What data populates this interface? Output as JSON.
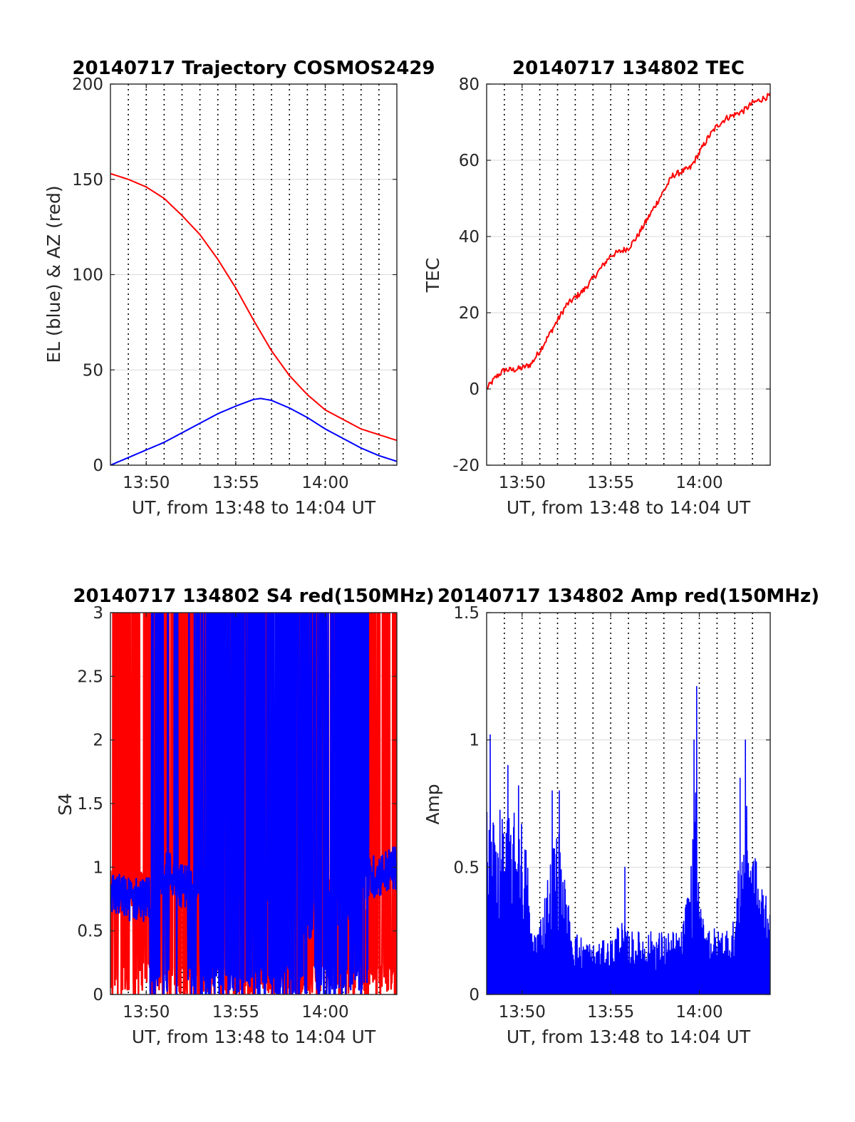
{
  "figure": {
    "background": "#ffffff",
    "colors": {
      "red": "#ff0000",
      "blue": "#0000ff",
      "grid": "#d9d9d9",
      "vline": "#000000",
      "axis": "#262626"
    }
  },
  "chart_data": [
    {
      "id": "trajectory",
      "type": "line",
      "title": "20140717 Trajectory COSMOS2429",
      "xlabel": "UT, from 13:48 to 14:04 UT",
      "ylabel": "EL (blue) & AZ (red)",
      "xlim_minutes": [
        828,
        844
      ],
      "ylim": [
        0,
        200
      ],
      "yticks": [
        0,
        50,
        100,
        150,
        200
      ],
      "ytick_labels": [
        "0",
        "50",
        "100",
        "150",
        "200"
      ],
      "xticks": [
        830,
        835,
        840
      ],
      "xtick_labels": [
        "13:50",
        "13:55",
        "14:00"
      ],
      "grid": "horizontal",
      "dotted_vlines": [
        829,
        830,
        831,
        832,
        833,
        834,
        835,
        836,
        837,
        838,
        839,
        840,
        841,
        842,
        843
      ],
      "series": [
        {
          "color": "#ff0000",
          "kind": "smooth",
          "points": [
            [
              828,
              153
            ],
            [
              829,
              150
            ],
            [
              830,
              146
            ],
            [
              831,
              140
            ],
            [
              832,
              131
            ],
            [
              833,
              121
            ],
            [
              834,
              108
            ],
            [
              835,
              93
            ],
            [
              836,
              76
            ],
            [
              837,
              60
            ],
            [
              838,
              47
            ],
            [
              839,
              37
            ],
            [
              840,
              29
            ],
            [
              841,
              24
            ],
            [
              842,
              19
            ],
            [
              843,
              16
            ],
            [
              844,
              13
            ]
          ]
        },
        {
          "color": "#0000ff",
          "kind": "smooth",
          "points": [
            [
              828,
              0
            ],
            [
              829,
              4
            ],
            [
              830,
              8
            ],
            [
              831,
              12
            ],
            [
              832,
              17
            ],
            [
              833,
              22
            ],
            [
              834,
              27
            ],
            [
              835,
              31
            ],
            [
              836,
              34.5
            ],
            [
              836.4,
              35
            ],
            [
              837,
              34
            ],
            [
              838,
              30
            ],
            [
              839,
              25
            ],
            [
              840,
              19
            ],
            [
              841,
              14
            ],
            [
              842,
              9
            ],
            [
              843,
              5
            ],
            [
              844,
              2
            ]
          ]
        }
      ]
    },
    {
      "id": "tec",
      "type": "line",
      "title": "20140717 134802 TEC",
      "xlabel": "UT, from 13:48 to 14:04 UT",
      "ylabel": "TEC",
      "xlim_minutes": [
        828,
        844
      ],
      "ylim": [
        -20,
        80
      ],
      "yticks": [
        -20,
        0,
        20,
        40,
        60,
        80
      ],
      "ytick_labels": [
        "-20",
        "0",
        "20",
        "40",
        "60",
        "80"
      ],
      "xticks": [
        830,
        835,
        840
      ],
      "xtick_labels": [
        "13:50",
        "13:55",
        "14:00"
      ],
      "grid": "horizontal",
      "dotted_vlines": [
        829,
        830,
        831,
        832,
        833,
        834,
        835,
        836,
        837,
        838,
        839,
        840,
        841,
        842,
        843
      ],
      "series": [
        {
          "color": "#ff0000",
          "kind": "noisy",
          "noise": 0.8,
          "samples": 320,
          "points": [
            [
              828,
              0
            ],
            [
              828.5,
              3
            ],
            [
              829,
              5
            ],
            [
              829.5,
              5
            ],
            [
              830,
              5.5
            ],
            [
              830.5,
              6.5
            ],
            [
              831,
              10
            ],
            [
              831.5,
              14
            ],
            [
              832,
              18
            ],
            [
              832.5,
              22
            ],
            [
              833,
              24
            ],
            [
              833.5,
              26
            ],
            [
              834,
              29
            ],
            [
              834.5,
              32
            ],
            [
              835,
              35
            ],
            [
              835.5,
              36
            ],
            [
              836,
              37
            ],
            [
              836.5,
              40
            ],
            [
              837,
              44
            ],
            [
              837.5,
              48
            ],
            [
              838,
              52
            ],
            [
              838.5,
              56
            ],
            [
              839,
              57
            ],
            [
              839.5,
              58
            ],
            [
              840,
              62
            ],
            [
              840.5,
              66
            ],
            [
              841,
              69
            ],
            [
              841.5,
              71
            ],
            [
              842,
              72
            ],
            [
              842.5,
              73
            ],
            [
              843,
              75
            ],
            [
              843.5,
              76
            ],
            [
              844,
              77
            ]
          ]
        }
      ]
    },
    {
      "id": "s4",
      "type": "line",
      "title": "20140717 134802 S4 red(150MHz)",
      "xlabel": "UT, from 13:48 to 14:04 UT",
      "ylabel": "S4",
      "xlim_minutes": [
        828,
        844
      ],
      "ylim": [
        0,
        3
      ],
      "yticks": [
        0,
        0.5,
        1,
        1.5,
        2,
        2.5,
        3
      ],
      "ytick_labels": [
        "0",
        "0.5",
        "1",
        "1.5",
        "2",
        "2.5",
        "3"
      ],
      "xticks": [
        830,
        835,
        840
      ],
      "xtick_labels": [
        "13:50",
        "13:55",
        "14:00"
      ],
      "grid": "horizontal",
      "dotted_vlines": [
        829,
        830,
        831,
        832,
        833,
        834,
        835,
        836,
        837,
        838,
        839,
        840,
        841,
        842,
        843
      ],
      "series": [
        {
          "color": "#ff0000",
          "kind": "saturated",
          "samples": 900,
          "low_points": [
            [
              828,
              0.8
            ],
            [
              831,
              0.9
            ],
            [
              834,
              0.9
            ],
            [
              838,
              0.9
            ],
            [
              842,
              0.8
            ],
            [
              844,
              0.8
            ]
          ],
          "segments": [
            [
              828,
              830,
              0.6
            ],
            [
              830,
              833,
              0.85
            ],
            [
              833,
              838,
              0.8
            ],
            [
              838,
              842,
              0.85
            ],
            [
              842,
              844,
              0.95
            ]
          ]
        },
        {
          "color": "#0000ff",
          "kind": "saturated",
          "samples": 900,
          "low_points": [
            [
              828,
              0.8
            ],
            [
              829,
              0.75
            ],
            [
              830,
              0.75
            ],
            [
              831,
              1.0
            ],
            [
              832,
              0.85
            ],
            [
              833,
              0.9
            ],
            [
              836,
              0.9
            ],
            [
              839,
              0.6
            ],
            [
              841,
              0.7
            ],
            [
              842.3,
              0.9
            ],
            [
              844,
              1.0
            ]
          ],
          "segments": [
            [
              828,
              830.2,
              0.0
            ],
            [
              830.2,
              831.0,
              0.9
            ],
            [
              831.0,
              833.0,
              0.2
            ],
            [
              833.0,
              839.0,
              0.9
            ],
            [
              839.0,
              839.3,
              0.05
            ],
            [
              839.3,
              842.4,
              0.8
            ],
            [
              842.4,
              844,
              0.0
            ]
          ]
        }
      ]
    },
    {
      "id": "amp",
      "type": "line",
      "title": "20140717 134802 Amp red(150MHz)",
      "xlabel": "UT, from 13:48 to 14:04 UT",
      "ylabel": "Amp",
      "xlim_minutes": [
        828,
        844
      ],
      "ylim": [
        0,
        1.5
      ],
      "yticks": [
        0,
        0.5,
        1,
        1.5
      ],
      "ytick_labels": [
        "0",
        "0.5",
        "1",
        "1.5"
      ],
      "xticks": [
        830,
        835,
        840
      ],
      "xtick_labels": [
        "13:50",
        "13:55",
        "14:00"
      ],
      "grid": "horizontal",
      "dotted_vlines": [
        829,
        830,
        831,
        832,
        833,
        834,
        835,
        836,
        837,
        838,
        839,
        840,
        841,
        842,
        843
      ],
      "series": [
        {
          "color": "#0000ff",
          "kind": "spiky",
          "samples": 1000,
          "envelope": [
            [
              828,
              0.75
            ],
            [
              828.5,
              0.75
            ],
            [
              829,
              0.7
            ],
            [
              829.5,
              0.72
            ],
            [
              830,
              0.7
            ],
            [
              830.3,
              0.55
            ],
            [
              830.5,
              0.25
            ],
            [
              831,
              0.3
            ],
            [
              831.5,
              0.5
            ],
            [
              832,
              0.7
            ],
            [
              832.5,
              0.4
            ],
            [
              833,
              0.25
            ],
            [
              834,
              0.2
            ],
            [
              835,
              0.22
            ],
            [
              835.5,
              0.3
            ],
            [
              836,
              0.25
            ],
            [
              837,
              0.25
            ],
            [
              838,
              0.25
            ],
            [
              839,
              0.25
            ],
            [
              839.5,
              0.5
            ],
            [
              839.8,
              0.8
            ],
            [
              840,
              0.35
            ],
            [
              841,
              0.25
            ],
            [
              842,
              0.3
            ],
            [
              842.3,
              0.6
            ],
            [
              842.7,
              0.75
            ],
            [
              843,
              0.6
            ],
            [
              843.5,
              0.45
            ],
            [
              844,
              0.45
            ]
          ],
          "peaks": [
            [
              828.2,
              1.02
            ],
            [
              829.2,
              0.9
            ],
            [
              829.8,
              0.82
            ],
            [
              831.7,
              0.8
            ],
            [
              832.1,
              0.8
            ],
            [
              835.8,
              0.5
            ],
            [
              839.7,
              1.0
            ],
            [
              839.85,
              1.21
            ],
            [
              842.6,
              1.0
            ],
            [
              842.3,
              0.85
            ]
          ]
        }
      ]
    }
  ]
}
